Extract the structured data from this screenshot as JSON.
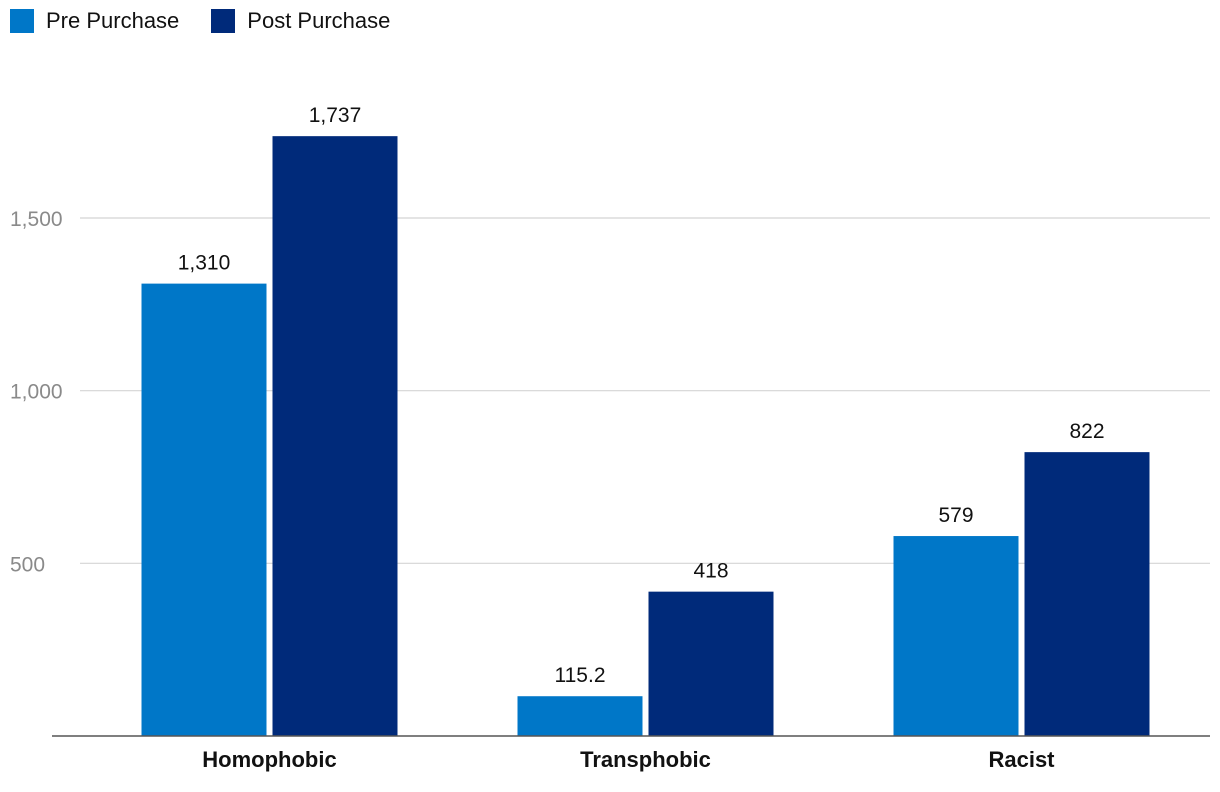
{
  "legend": {
    "items": [
      {
        "label": "Pre Purchase",
        "color": "#0077c8"
      },
      {
        "label": "Post Purchase",
        "color": "#002a7a"
      }
    ]
  },
  "chart_data": {
    "type": "bar",
    "categories": [
      "Homophobic",
      "Transphobic",
      "Racist"
    ],
    "series": [
      {
        "name": "Pre Purchase",
        "values": [
          1310,
          115.2,
          579
        ],
        "labels": [
          "1,310",
          "115.2",
          "579"
        ],
        "color": "#0077c8"
      },
      {
        "name": "Post Purchase",
        "values": [
          1737,
          418,
          822
        ],
        "labels": [
          "1,737",
          "418",
          "822"
        ],
        "color": "#002a7a"
      }
    ],
    "y_ticks": [
      {
        "value": 500,
        "label": "500"
      },
      {
        "value": 1000,
        "label": "1,000"
      },
      {
        "value": 1500,
        "label": "1,500"
      }
    ],
    "ylim": [
      0,
      1500
    ],
    "grid": true,
    "legend_position": "top-left",
    "title": "",
    "xlabel": "",
    "ylabel": ""
  }
}
